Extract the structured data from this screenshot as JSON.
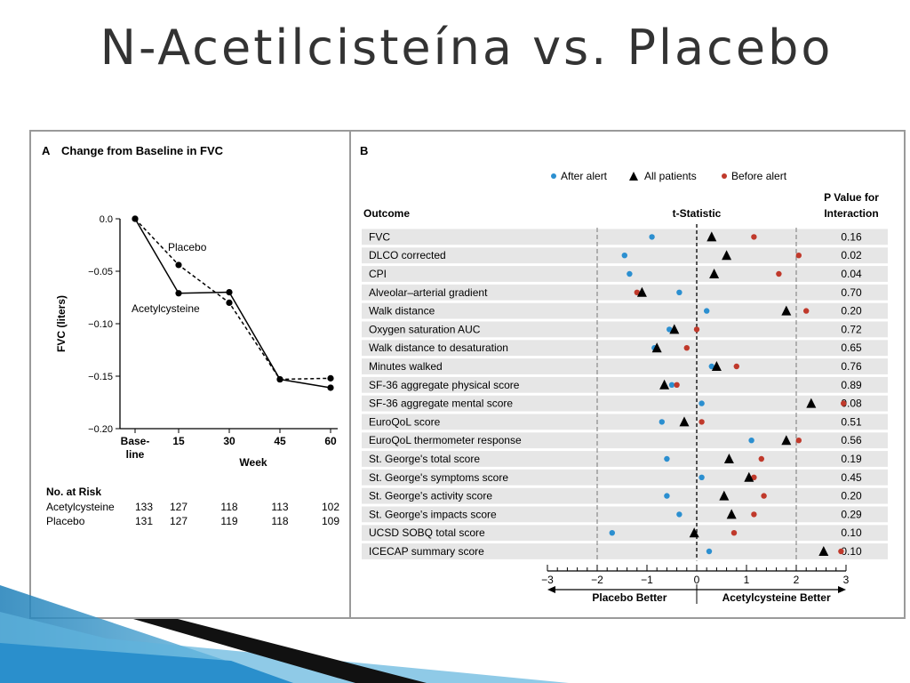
{
  "slide": {
    "title": "N-Acetilcisteína vs. Placebo"
  },
  "panel_a": {
    "letter": "A",
    "heading": "Change from Baseline in FVC",
    "ylabel": "FVC (liters)",
    "xlabel": "Week",
    "yticks": [
      "0.0",
      "−0.05",
      "−0.10",
      "−0.15",
      "−0.20"
    ],
    "xticks": [
      "Base-\nline",
      "15",
      "30",
      "45",
      "60"
    ],
    "label_placebo": "Placebo",
    "label_acetyl": "Acetylcysteine",
    "risk_heading": "No. at Risk",
    "risk_rows": [
      {
        "label": "Acetylcysteine",
        "values": [
          "133",
          "127",
          "118",
          "113",
          "102"
        ]
      },
      {
        "label": "Placebo",
        "values": [
          "131",
          "127",
          "119",
          "118",
          "109"
        ]
      }
    ]
  },
  "panel_b": {
    "letter": "B",
    "legend": {
      "after": "After alert",
      "all": "All patients",
      "before": "Before alert"
    },
    "col_outcome": "Outcome",
    "col_t": "t-Statistic",
    "col_p_line1": "P Value for",
    "col_p_line2": "Interaction",
    "xticks": [
      "−3",
      "−2",
      "−1",
      "0",
      "1",
      "2",
      "3"
    ],
    "left_label": "Placebo Better",
    "right_label": "Acetylcysteine Better"
  },
  "colors": {
    "after": "#2b8fd0",
    "before": "#c0392b",
    "all": "#000000",
    "row_shade": "#e6e6e6",
    "border": "#9a9a9a"
  },
  "chart_data": [
    {
      "type": "line",
      "title": "Change from Baseline in FVC",
      "xlabel": "Week",
      "ylabel": "FVC (liters)",
      "x": [
        "Baseline",
        "15",
        "30",
        "45",
        "60"
      ],
      "ylim": [
        -0.2,
        0.0
      ],
      "series": [
        {
          "name": "Placebo",
          "style": "dashed",
          "values": [
            0.0,
            -0.044,
            -0.08,
            -0.153,
            -0.152
          ]
        },
        {
          "name": "Acetylcysteine",
          "style": "solid",
          "values": [
            0.0,
            -0.071,
            -0.07,
            -0.153,
            -0.161
          ]
        }
      ]
    },
    {
      "type": "scatter",
      "xlabel": "t-Statistic",
      "xlim": [
        -3,
        3
      ],
      "series_names": [
        "After alert",
        "All patients",
        "Before alert"
      ],
      "rows": [
        {
          "outcome": "FVC",
          "after": -0.9,
          "all": 0.3,
          "before": 1.15,
          "p": "0.16"
        },
        {
          "outcome": "DLCO corrected",
          "after": -1.45,
          "all": 0.6,
          "before": 2.05,
          "p": "0.02"
        },
        {
          "outcome": "CPI",
          "after": -1.35,
          "all": 0.35,
          "before": 1.65,
          "p": "0.04"
        },
        {
          "outcome": "Alveolar–arterial gradient",
          "after": -0.35,
          "all": -1.1,
          "before": -1.2,
          "p": "0.70"
        },
        {
          "outcome": "Walk distance",
          "after": 0.2,
          "all": 1.8,
          "before": 2.2,
          "p": "0.20"
        },
        {
          "outcome": "Oxygen saturation AUC",
          "after": -0.55,
          "all": -0.45,
          "before": 0.0,
          "p": "0.72"
        },
        {
          "outcome": "Walk distance to desaturation",
          "after": -0.85,
          "all": -0.8,
          "before": -0.2,
          "p": "0.65"
        },
        {
          "outcome": "Minutes walked",
          "after": 0.3,
          "all": 0.4,
          "before": 0.8,
          "p": "0.76"
        },
        {
          "outcome": "SF-36 aggregate physical score",
          "after": -0.5,
          "all": -0.65,
          "before": -0.4,
          "p": "0.89"
        },
        {
          "outcome": "SF-36 aggregate mental score",
          "after": 0.1,
          "all": 2.3,
          "before": 2.95,
          "p": "0.08"
        },
        {
          "outcome": "EuroQoL score",
          "after": -0.7,
          "all": -0.25,
          "before": 0.1,
          "p": "0.51"
        },
        {
          "outcome": "EuroQoL thermometer response",
          "after": 1.1,
          "all": 1.8,
          "before": 2.05,
          "p": "0.56"
        },
        {
          "outcome": "St. George's total score",
          "after": -0.6,
          "all": 0.65,
          "before": 1.3,
          "p": "0.19"
        },
        {
          "outcome": "St. George's symptoms score",
          "after": 0.1,
          "all": 1.05,
          "before": 1.15,
          "p": "0.45"
        },
        {
          "outcome": "St. George's activity score",
          "after": -0.6,
          "all": 0.55,
          "before": 1.35,
          "p": "0.20"
        },
        {
          "outcome": "St. George's impacts score",
          "after": -0.35,
          "all": 0.7,
          "before": 1.15,
          "p": "0.29"
        },
        {
          "outcome": "UCSD SOBQ total score",
          "after": -1.7,
          "all": -0.05,
          "before": 0.75,
          "p": "0.10"
        },
        {
          "outcome": "ICECAP summary score",
          "after": 0.25,
          "all": 2.55,
          "before": 2.9,
          "p": "0.10"
        }
      ]
    }
  ]
}
